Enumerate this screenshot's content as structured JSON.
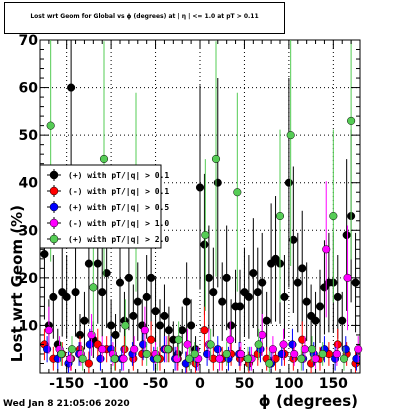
{
  "chart_data": {
    "type": "scatter",
    "title": "Lost wrt Geom for Global vs ϕ (degrees) at | η | <= 1.0 at pT > 0.11",
    "xlabel": "ϕ (degrees)",
    "ylabel": "Lost wrt Geom (%)",
    "xlim": [
      -180,
      180
    ],
    "ylim": [
      0,
      70
    ],
    "xticks": [
      -150,
      -100,
      -50,
      0,
      50,
      100,
      150
    ],
    "yticks": [
      10,
      20,
      30,
      40,
      50,
      60,
      70
    ],
    "ytick_top_label": "70",
    "grid": true,
    "legend_position": "upper-left",
    "series": [
      {
        "name": "(+) with pT/|q| > 0.1",
        "color": "#000000",
        "points": [
          [
            -175,
            25
          ],
          [
            -170,
            10
          ],
          [
            -165,
            16
          ],
          [
            -160,
            6
          ],
          [
            -155,
            17
          ],
          [
            -150,
            16
          ],
          [
            -145,
            60
          ],
          [
            -140,
            17
          ],
          [
            -135,
            8
          ],
          [
            -130,
            11
          ],
          [
            -125,
            23
          ],
          [
            -120,
            7
          ],
          [
            -115,
            23
          ],
          [
            -110,
            17
          ],
          [
            -105,
            21
          ],
          [
            -100,
            10
          ],
          [
            -95,
            8
          ],
          [
            -90,
            19
          ],
          [
            -85,
            11
          ],
          [
            -80,
            20
          ],
          [
            -75,
            12
          ],
          [
            -70,
            15
          ],
          [
            -65,
            10
          ],
          [
            -60,
            16
          ],
          [
            -55,
            20
          ],
          [
            -50,
            13
          ],
          [
            -45,
            10
          ],
          [
            -40,
            12
          ],
          [
            -35,
            9
          ],
          [
            -30,
            7
          ],
          [
            -25,
            4
          ],
          [
            -20,
            9
          ],
          [
            -15,
            15
          ],
          [
            -10,
            10
          ],
          [
            -5,
            5
          ],
          [
            0,
            39
          ],
          [
            5,
            27
          ],
          [
            10,
            20
          ],
          [
            15,
            17
          ],
          [
            20,
            40
          ],
          [
            25,
            15
          ],
          [
            30,
            20
          ],
          [
            35,
            10
          ],
          [
            40,
            14
          ],
          [
            45,
            14
          ],
          [
            50,
            17
          ],
          [
            55,
            16
          ],
          [
            60,
            21
          ],
          [
            65,
            17
          ],
          [
            70,
            19
          ],
          [
            75,
            11
          ],
          [
            80,
            23
          ],
          [
            85,
            24
          ],
          [
            90,
            23
          ],
          [
            95,
            16
          ],
          [
            100,
            40
          ],
          [
            105,
            28
          ],
          [
            110,
            19
          ],
          [
            115,
            22
          ],
          [
            120,
            15
          ],
          [
            125,
            12
          ],
          [
            130,
            11
          ],
          [
            135,
            14
          ],
          [
            140,
            18
          ],
          [
            145,
            19
          ],
          [
            150,
            19
          ],
          [
            155,
            16
          ],
          [
            160,
            11
          ],
          [
            165,
            29
          ],
          [
            170,
            33
          ],
          [
            175,
            19
          ]
        ]
      },
      {
        "name": "(-) with pT/|q| > 0.1",
        "color": "#ff0000",
        "points": [
          [
            -175,
            6
          ],
          [
            -165,
            3
          ],
          [
            -155,
            4
          ],
          [
            -145,
            3
          ],
          [
            -135,
            5
          ],
          [
            -125,
            2
          ],
          [
            -115,
            6
          ],
          [
            -105,
            5
          ],
          [
            -95,
            3
          ],
          [
            -85,
            5
          ],
          [
            -75,
            3
          ],
          [
            -65,
            4
          ],
          [
            -55,
            7
          ],
          [
            -45,
            3
          ],
          [
            -35,
            5
          ],
          [
            -25,
            3
          ],
          [
            -15,
            2
          ],
          [
            -5,
            2
          ],
          [
            5,
            9
          ],
          [
            15,
            3
          ],
          [
            25,
            3
          ],
          [
            35,
            4
          ],
          [
            45,
            3
          ],
          [
            55,
            2
          ],
          [
            65,
            4
          ],
          [
            75,
            3
          ],
          [
            85,
            3
          ],
          [
            95,
            4
          ],
          [
            105,
            3
          ],
          [
            115,
            7
          ],
          [
            125,
            2
          ],
          [
            135,
            3
          ],
          [
            145,
            4
          ],
          [
            155,
            6
          ],
          [
            165,
            4
          ],
          [
            175,
            2
          ]
        ]
      },
      {
        "name": "(+) with pT/|q| > 0.5",
        "color": "#0000ff",
        "points": [
          [
            -172,
            5
          ],
          [
            -160,
            3
          ],
          [
            -148,
            2
          ],
          [
            -136,
            4
          ],
          [
            -124,
            6
          ],
          [
            -112,
            3
          ],
          [
            -100,
            5
          ],
          [
            -88,
            3
          ],
          [
            -76,
            4
          ],
          [
            -64,
            6
          ],
          [
            -52,
            3
          ],
          [
            -40,
            5
          ],
          [
            -28,
            3
          ],
          [
            -16,
            2
          ],
          [
            -4,
            3
          ],
          [
            8,
            4
          ],
          [
            20,
            5
          ],
          [
            32,
            3
          ],
          [
            44,
            4
          ],
          [
            56,
            3
          ],
          [
            68,
            5
          ],
          [
            80,
            2
          ],
          [
            92,
            4
          ],
          [
            104,
            6
          ],
          [
            116,
            3
          ],
          [
            128,
            4
          ],
          [
            140,
            5
          ],
          [
            152,
            3
          ],
          [
            164,
            5
          ],
          [
            176,
            3
          ]
        ]
      },
      {
        "name": "(-) with pT/|q| > 1.0",
        "color": "#ff00ff",
        "points": [
          [
            -170,
            9
          ],
          [
            -158,
            5
          ],
          [
            -146,
            3
          ],
          [
            -134,
            4
          ],
          [
            -122,
            8
          ],
          [
            -110,
            5
          ],
          [
            -98,
            4
          ],
          [
            -86,
            3
          ],
          [
            -74,
            5
          ],
          [
            -62,
            9
          ],
          [
            -50,
            4
          ],
          [
            -38,
            5
          ],
          [
            -26,
            3
          ],
          [
            -14,
            6
          ],
          [
            -2,
            3
          ],
          [
            10,
            6
          ],
          [
            22,
            3
          ],
          [
            34,
            7
          ],
          [
            46,
            4
          ],
          [
            58,
            3
          ],
          [
            70,
            8
          ],
          [
            82,
            5
          ],
          [
            94,
            6
          ],
          [
            106,
            4
          ],
          [
            118,
            5
          ],
          [
            130,
            3
          ],
          [
            142,
            26
          ],
          [
            154,
            4
          ],
          [
            166,
            20
          ],
          [
            178,
            5
          ]
        ]
      },
      {
        "name": "(+) with pT/|q| > 2.0",
        "color": "#55cc55",
        "points": [
          [
            -168,
            52
          ],
          [
            -156,
            4
          ],
          [
            -144,
            5
          ],
          [
            -132,
            3
          ],
          [
            -120,
            18
          ],
          [
            -108,
            45
          ],
          [
            -96,
            3
          ],
          [
            -84,
            10
          ],
          [
            -72,
            38
          ],
          [
            -60,
            4
          ],
          [
            -48,
            3
          ],
          [
            -36,
            5
          ],
          [
            -24,
            7
          ],
          [
            -12,
            3
          ],
          [
            -6,
            4
          ],
          [
            6,
            29
          ],
          [
            12,
            6
          ],
          [
            18,
            45
          ],
          [
            30,
            4
          ],
          [
            42,
            38
          ],
          [
            54,
            3
          ],
          [
            66,
            6
          ],
          [
            78,
            2
          ],
          [
            90,
            33
          ],
          [
            102,
            50
          ],
          [
            114,
            3
          ],
          [
            126,
            5
          ],
          [
            138,
            4
          ],
          [
            150,
            33
          ],
          [
            162,
            3
          ],
          [
            170,
            53
          ]
        ]
      }
    ]
  },
  "footer": {
    "timestamp": "Wed Jan  8 21:05:06 2020"
  }
}
